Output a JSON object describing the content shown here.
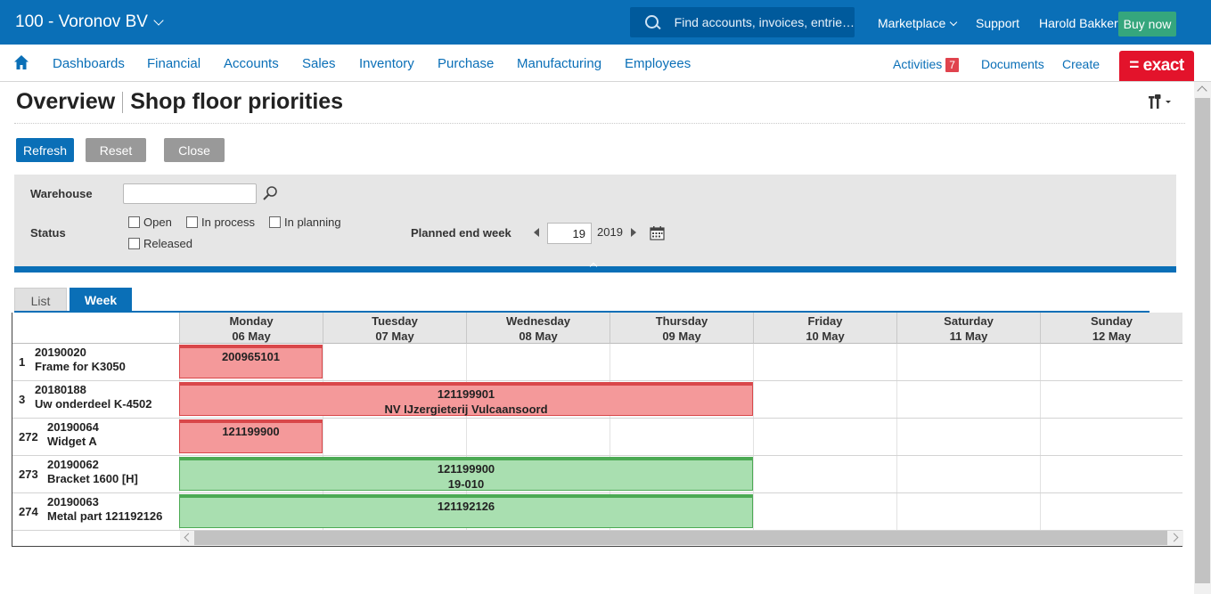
{
  "header": {
    "company": "100 - Voronov BV",
    "search_placeholder": "Find accounts, invoices, entrie…",
    "marketplace": "Marketplace",
    "support": "Support",
    "user": "Harold Bakker",
    "buy_now": "Buy now"
  },
  "nav": {
    "items": [
      "Dashboards",
      "Financial",
      "Accounts",
      "Sales",
      "Inventory",
      "Purchase",
      "Manufacturing",
      "Employees"
    ],
    "activities": "Activities",
    "activities_count": "7",
    "documents": "Documents",
    "create": "Create",
    "logo": "= exact"
  },
  "page": {
    "crumb": "Overview",
    "title": "Shop floor priorities"
  },
  "toolbar": {
    "refresh": "Refresh",
    "reset": "Reset",
    "close": "Close"
  },
  "filter": {
    "warehouse_label": "Warehouse",
    "warehouse_value": "",
    "status_label": "Status",
    "status_options": [
      "Open",
      "In process",
      "In planning",
      "Released"
    ],
    "planned_end_week_label": "Planned end week",
    "week": "19",
    "year": "2019"
  },
  "tabs": [
    "List",
    "Week"
  ],
  "planner": {
    "days": [
      {
        "name": "Monday",
        "date": "06 May"
      },
      {
        "name": "Tuesday",
        "date": "07 May"
      },
      {
        "name": "Wednesday",
        "date": "08 May"
      },
      {
        "name": "Thursday",
        "date": "09 May"
      },
      {
        "name": "Friday",
        "date": "10 May"
      },
      {
        "name": "Saturday",
        "date": "11 May"
      },
      {
        "name": "Sunday",
        "date": "12 May"
      }
    ],
    "rows": [
      {
        "num": "1",
        "code": "20190020",
        "desc": "Frame for K3050",
        "bar": {
          "line1": "200965101",
          "line2": "",
          "start_day": 0,
          "end_day": 0,
          "status": "red"
        }
      },
      {
        "num": "3",
        "code": "20180188",
        "desc": "Uw onderdeel K-4502",
        "bar": {
          "line1": "121199901",
          "line2": "NV IJzergieterij Vulcaansoord",
          "start_day": 0,
          "end_day": 3,
          "status": "red"
        }
      },
      {
        "num": "272",
        "code": "20190064",
        "desc": "Widget A",
        "bar": {
          "line1": "121199900",
          "line2": "",
          "start_day": 0,
          "end_day": 0,
          "status": "red"
        }
      },
      {
        "num": "273",
        "code": "20190062",
        "desc": "Bracket 1600 [H]",
        "bar": {
          "line1": "121199900",
          "line2": "19-010",
          "start_day": 0,
          "end_day": 3,
          "status": "green"
        }
      },
      {
        "num": "274",
        "code": "20190063",
        "desc": "Metal part 121192126",
        "bar": {
          "line1": "121192126",
          "line2": "",
          "start_day": 0,
          "end_day": 3,
          "status": "green"
        }
      }
    ]
  },
  "colors": {
    "brand_blue": "#0a6fb7",
    "late_red": "#f4999a",
    "ok_green": "#a9dfb0",
    "exact_red": "#e3132b",
    "buy_green": "#35a67d"
  }
}
